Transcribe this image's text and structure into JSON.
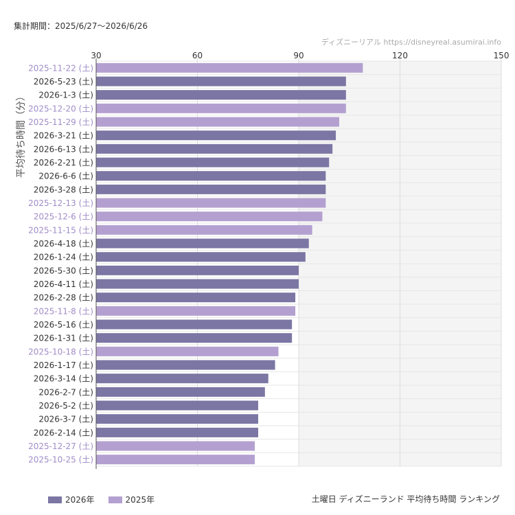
{
  "header": {
    "period": "集計期間：2025/6/27〜2026/6/26",
    "source": "ディズニーリアル https://disneyreal.asumirai.info"
  },
  "footer": {
    "title": "土曜日 ディズニーランド 平均待ち時間 ランキング"
  },
  "colors": {
    "s2026": "#7b76a3",
    "s2025": "#b4a0d0",
    "label2026": "#333333",
    "label2025": "#a08cc8",
    "shade": "#f4f4f4",
    "grid": "#e6e6e6"
  },
  "chart_data": {
    "type": "bar",
    "orientation": "horizontal",
    "ylabel": "平均待ち時間（分）",
    "xlim": [
      30,
      150
    ],
    "xticks": [
      30,
      60,
      90,
      120,
      150
    ],
    "shaded_region": [
      90,
      150
    ],
    "legend": "bottom-left",
    "series": [
      {
        "name": "2026年",
        "key": "s2026"
      },
      {
        "name": "2025年",
        "key": "s2025"
      }
    ],
    "categories": [
      "2025-11-22 (土)",
      "2026-5-23 (土)",
      "2026-1-3 (土)",
      "2025-12-20 (土)",
      "2025-11-29 (土)",
      "2026-3-21 (土)",
      "2026-6-13 (土)",
      "2026-2-21 (土)",
      "2026-6-6 (土)",
      "2026-3-28 (土)",
      "2025-12-13 (土)",
      "2025-12-6 (土)",
      "2025-11-15 (土)",
      "2026-4-18 (土)",
      "2026-1-24 (土)",
      "2026-5-30 (土)",
      "2026-4-11 (土)",
      "2026-2-28 (土)",
      "2025-11-8 (土)",
      "2026-5-16 (土)",
      "2026-1-31 (土)",
      "2025-10-18 (土)",
      "2026-1-17 (土)",
      "2026-3-14 (土)",
      "2026-2-7 (土)",
      "2026-5-2 (土)",
      "2026-3-7 (土)",
      "2026-2-14 (土)",
      "2025-12-27 (土)",
      "2025-10-25 (土)"
    ],
    "values": [
      109,
      104,
      104,
      104,
      102,
      101,
      100,
      99,
      98,
      98,
      98,
      97,
      94,
      93,
      92,
      90,
      90,
      89,
      89,
      88,
      88,
      84,
      83,
      81,
      80,
      78,
      78,
      78,
      77,
      77
    ],
    "series_of": [
      "s2025",
      "s2026",
      "s2026",
      "s2025",
      "s2025",
      "s2026",
      "s2026",
      "s2026",
      "s2026",
      "s2026",
      "s2025",
      "s2025",
      "s2025",
      "s2026",
      "s2026",
      "s2026",
      "s2026",
      "s2026",
      "s2025",
      "s2026",
      "s2026",
      "s2025",
      "s2026",
      "s2026",
      "s2026",
      "s2026",
      "s2026",
      "s2026",
      "s2025",
      "s2025"
    ]
  }
}
